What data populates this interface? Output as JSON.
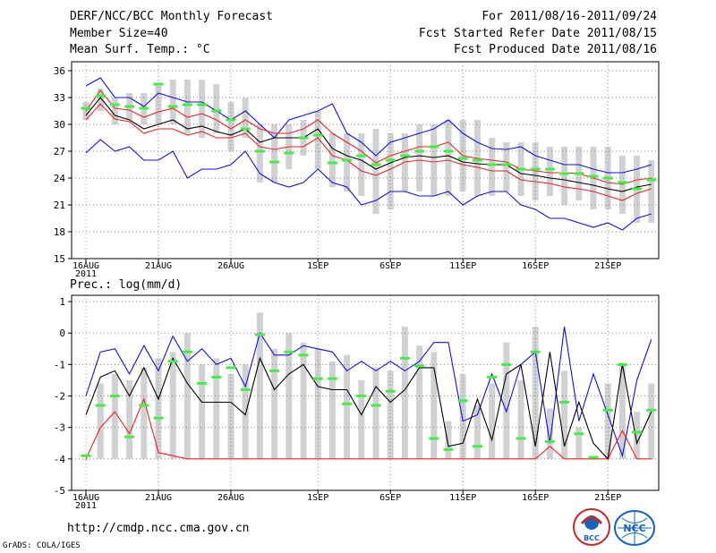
{
  "header": {
    "title": "DERF/NCC/BCC Monthly Forecast",
    "member_size": "Member Size=40",
    "variable": "Mean Surf. Temp.: °C",
    "period": "For 2011/08/16-2011/09/24",
    "fcst_started": "Fcst Started Refer Date 2011/08/15",
    "fcst_produced": "Fcst Produced Date 2011/08/16"
  },
  "footer": {
    "url": "http://cmdp.ncc.cma.gov.cn",
    "credit": "GrADS: COLA/IGES",
    "logo1_text": "BCC",
    "logo2_text": "NCC"
  },
  "colors": {
    "box": "#d0d1d5",
    "observed": "#44ee44",
    "envelope": "#1111dd",
    "spread": "#ee2222",
    "mean": "#000000",
    "grid": "#888888"
  },
  "chart_data": [
    {
      "type": "line",
      "title": "Mean Surf. Temp.: °C",
      "xlabel": "",
      "ylabel": "°C",
      "ylim": [
        15,
        37
      ],
      "yticks": [
        15,
        18,
        21,
        24,
        27,
        30,
        33,
        36
      ],
      "day_range": [
        0,
        39
      ],
      "xtick_days": [
        0,
        5,
        10,
        16,
        21,
        26,
        31,
        36
      ],
      "xtick_labels": [
        "16AUG",
        "21AUG",
        "26AUG",
        "1SEP",
        "6SEP",
        "11SEP",
        "16SEP",
        "21SEP"
      ],
      "year_label": "2011",
      "series": [
        {
          "name": "max",
          "values": [
            34.3,
            35.2,
            33.0,
            33.0,
            32.0,
            33.5,
            33.0,
            32.5,
            32.5,
            31.5,
            30.5,
            31.5,
            30.0,
            28.5,
            30.5,
            31.0,
            31.5,
            32.3,
            29.0,
            28.0,
            26.5,
            28.0,
            28.5,
            29.0,
            29.5,
            30.5,
            29.0,
            28.0,
            27.3,
            27.2,
            27.5,
            26.5,
            26.0,
            25.5,
            25.5,
            25.0,
            24.6,
            24.6,
            25.0,
            25.5
          ]
        },
        {
          "name": "upper",
          "values": [
            31.5,
            33.8,
            31.8,
            31.6,
            30.8,
            31.4,
            31.8,
            30.8,
            31.2,
            30.5,
            29.5,
            30.5,
            29.5,
            29.0,
            29.0,
            29.5,
            30.5,
            29.0,
            28.0,
            27.0,
            25.7,
            26.5,
            27.0,
            27.5,
            27.5,
            28.0,
            26.5,
            26.2,
            26.0,
            25.8,
            25.0,
            24.8,
            24.6,
            24.6,
            24.5,
            24.0,
            23.5,
            23.3,
            23.8,
            24.0
          ]
        },
        {
          "name": "mean",
          "values": [
            31.0,
            33.0,
            31.0,
            30.5,
            29.5,
            30.0,
            30.5,
            29.5,
            29.8,
            29.2,
            28.8,
            29.5,
            28.0,
            28.5,
            28.5,
            28.5,
            29.5,
            27.3,
            26.5,
            26.0,
            25.0,
            25.7,
            26.3,
            26.5,
            26.3,
            26.5,
            25.8,
            25.6,
            25.5,
            25.5,
            24.5,
            24.3,
            24.0,
            23.8,
            23.5,
            23.2,
            22.8,
            22.5,
            23.0,
            23.3
          ]
        },
        {
          "name": "lower",
          "values": [
            30.5,
            32.3,
            30.6,
            30.3,
            29.0,
            29.5,
            29.5,
            28.8,
            29.2,
            28.5,
            28.5,
            29.0,
            27.5,
            27.2,
            27.5,
            27.5,
            28.5,
            26.5,
            26.0,
            24.8,
            24.3,
            25.0,
            25.8,
            26.0,
            25.8,
            26.0,
            25.5,
            25.2,
            24.8,
            24.8,
            23.8,
            23.6,
            23.4,
            23.0,
            22.8,
            22.5,
            22.0,
            21.5,
            22.3,
            22.8
          ]
        },
        {
          "name": "min",
          "values": [
            26.8,
            28.3,
            27.0,
            27.5,
            26.0,
            26.0,
            27.0,
            24.0,
            25.0,
            25.0,
            25.5,
            27.0,
            24.5,
            23.5,
            23.0,
            23.5,
            25.0,
            23.5,
            23.0,
            21.0,
            21.5,
            22.5,
            22.5,
            22.0,
            22.0,
            22.5,
            21.0,
            22.0,
            22.5,
            22.5,
            21.0,
            20.5,
            19.5,
            19.5,
            19.0,
            18.5,
            19.0,
            18.2,
            19.5,
            20.0
          ]
        },
        {
          "name": "observed",
          "values": [
            31.8,
            33.2,
            32.2,
            32.0,
            31.8,
            34.5,
            32.0,
            32.2,
            32.2,
            31.5,
            30.5,
            29.5,
            27.0,
            25.8,
            26.8,
            28.5,
            28.8,
            25.7,
            26.0,
            26.5,
            25.5,
            26.0,
            26.5,
            27.0,
            27.5,
            27.0,
            26.2,
            26.0,
            25.5,
            25.5,
            25.0,
            25.0,
            25.0,
            24.5,
            24.5,
            24.2,
            24.0,
            23.5,
            22.8,
            23.8
          ]
        },
        {
          "name": "box_top",
          "values": [
            32.5,
            34.0,
            33.0,
            33.5,
            33.5,
            34.5,
            35.0,
            35.0,
            35.0,
            34.5,
            32.5,
            33.0,
            30.0,
            30.0,
            30.0,
            30.5,
            31.5,
            29.0,
            29.0,
            29.0,
            29.5,
            29.0,
            29.0,
            30.0,
            30.0,
            30.5,
            30.5,
            30.5,
            28.5,
            28.0,
            28.0,
            28.0,
            27.5,
            27.5,
            27.5,
            27.5,
            27.5,
            26.5,
            26.5,
            26.0
          ]
        },
        {
          "name": "box_bottom",
          "values": [
            30.5,
            31.5,
            30.0,
            30.5,
            30.0,
            30.0,
            30.0,
            29.0,
            28.5,
            29.0,
            27.0,
            28.5,
            23.5,
            23.5,
            25.0,
            26.5,
            25.0,
            23.0,
            22.5,
            22.0,
            20.0,
            20.5,
            22.5,
            22.5,
            22.0,
            22.0,
            22.5,
            22.0,
            22.0,
            22.5,
            22.0,
            21.5,
            22.0,
            21.0,
            21.5,
            20.5,
            20.5,
            20.0,
            19.0,
            19.0
          ]
        }
      ]
    },
    {
      "type": "line",
      "title": "Prec.: log(mm/d)",
      "xlabel": "",
      "ylabel": "log(mm/d)",
      "ylim": [
        -5,
        1.2
      ],
      "yticks": [
        -5,
        -4,
        -3,
        -2,
        -1,
        0,
        1
      ],
      "day_range": [
        0,
        39
      ],
      "xtick_days": [
        0,
        5,
        10,
        16,
        21,
        26,
        31,
        36
      ],
      "xtick_labels": [
        "16AUG",
        "21AUG",
        "26AUG",
        "1SEP",
        "6SEP",
        "11SEP",
        "16SEP",
        "21SEP"
      ],
      "year_label": "2011",
      "series": [
        {
          "name": "max",
          "values": [
            -2.0,
            -0.6,
            -0.5,
            -1.3,
            -0.4,
            -1.2,
            -0.1,
            -0.9,
            -0.5,
            -1.0,
            -0.8,
            -1.7,
            0.0,
            -0.7,
            -0.7,
            -0.4,
            -0.5,
            -0.6,
            -1.2,
            -0.9,
            -1.2,
            -0.9,
            -1.2,
            -0.9,
            -0.3,
            -0.3,
            -2.8,
            -2.6,
            -1.3,
            -2.5,
            -1.0,
            -0.6,
            -3.5,
            0.2,
            -2.8,
            -1.3,
            -2.6,
            -3.9,
            -1.5,
            -0.2
          ]
        },
        {
          "name": "mean",
          "values": [
            -2.6,
            -1.4,
            -1.2,
            -2.0,
            -1.1,
            -2.1,
            -0.8,
            -1.6,
            -2.2,
            -2.2,
            -2.2,
            -2.6,
            -0.8,
            -1.8,
            -1.3,
            -1.0,
            -1.7,
            -1.8,
            -1.8,
            -2.6,
            -1.7,
            -2.2,
            -1.8,
            -1.1,
            -1.1,
            -3.6,
            -3.5,
            -2.1,
            -3.4,
            -1.3,
            -1.0,
            -3.6,
            -0.6,
            -3.6,
            -2.2,
            -3.5,
            -4.0,
            -1.0,
            -3.5,
            -2.5
          ]
        },
        {
          "name": "low",
          "values": [
            -4.0,
            -3.0,
            -2.5,
            -3.2,
            -2.1,
            -3.8,
            -3.9,
            -4.0,
            -4.0,
            -4.0,
            -4.0,
            -4.0,
            -4.0,
            -4.0,
            -4.0,
            -4.0,
            -4.0,
            -4.0,
            -4.0,
            -4.0,
            -4.0,
            -4.0,
            -4.0,
            -4.0,
            -4.0,
            -4.0,
            -4.0,
            -4.0,
            -4.0,
            -4.0,
            -4.0,
            -4.0,
            -3.6,
            -4.0,
            -4.0,
            -4.0,
            -4.0,
            -3.1,
            -4.0,
            -4.0
          ]
        },
        {
          "name": "observed",
          "values": [
            -3.9,
            -2.3,
            -2.0,
            -3.3,
            -2.3,
            -2.7,
            -0.9,
            -0.6,
            -1.6,
            -1.4,
            -1.1,
            -1.8,
            -0.05,
            -1.2,
            -0.6,
            -0.7,
            -1.45,
            -1.45,
            -2.25,
            -2.0,
            -2.3,
            -1.85,
            -0.8,
            -1.05,
            -3.35,
            -3.7,
            -2.15,
            -3.6,
            -1.4,
            -1.0,
            -3.35,
            -0.6,
            -3.45,
            -2.2,
            -3.2,
            -3.95,
            -2.45,
            -1.0,
            -3.15,
            -2.45
          ]
        },
        {
          "name": "box_top",
          "values": [
            -4.0,
            -1.6,
            -1.3,
            -1.5,
            -1.1,
            -0.8,
            -0.6,
            0.0,
            -1.0,
            -0.8,
            -1.3,
            -1.0,
            0.65,
            -0.5,
            0.0,
            -0.3,
            -0.5,
            -0.9,
            -0.7,
            -1.5,
            -1.1,
            -1.2,
            0.2,
            -0.4,
            -0.6,
            -2.8,
            -1.3,
            -2.3,
            -1.6,
            -0.3,
            -1.5,
            0.2,
            -2.4,
            -1.2,
            -3.0,
            -4.0,
            -1.6,
            -1.0,
            -2.5,
            -1.6
          ]
        },
        {
          "name": "box_bottom",
          "values": [
            -4.0,
            -4.0,
            -4.0,
            -4.0,
            -4.0,
            -4.0,
            -4.0,
            -4.0,
            -4.0,
            -4.0,
            -4.0,
            -4.0,
            -4.0,
            -4.0,
            -4.0,
            -4.0,
            -4.0,
            -4.0,
            -4.0,
            -4.0,
            -4.0,
            -4.0,
            -4.0,
            -4.0,
            -4.0,
            -4.0,
            -4.0,
            -4.0,
            -4.0,
            -4.0,
            -4.0,
            -4.0,
            -4.0,
            -4.0,
            -4.0,
            -4.0,
            -4.0,
            -4.0,
            -4.0,
            -4.0
          ]
        }
      ]
    }
  ]
}
